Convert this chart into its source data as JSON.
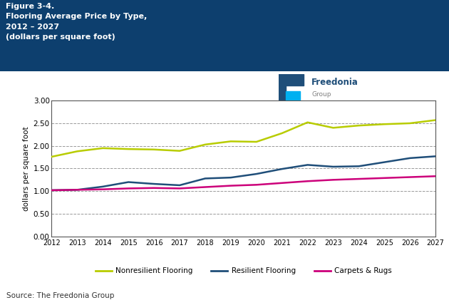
{
  "years": [
    2012,
    2013,
    2014,
    2015,
    2016,
    2017,
    2018,
    2019,
    2020,
    2021,
    2022,
    2023,
    2024,
    2025,
    2026,
    2027
  ],
  "nonresilient": [
    1.76,
    1.88,
    1.95,
    1.93,
    1.92,
    1.89,
    2.03,
    2.1,
    2.09,
    2.28,
    2.52,
    2.4,
    2.45,
    2.48,
    2.5,
    2.57
  ],
  "resilient": [
    1.02,
    1.03,
    1.1,
    1.2,
    1.16,
    1.13,
    1.28,
    1.3,
    1.38,
    1.49,
    1.58,
    1.54,
    1.55,
    1.64,
    1.73,
    1.77
  ],
  "carpets": [
    1.02,
    1.03,
    1.04,
    1.06,
    1.07,
    1.06,
    1.09,
    1.12,
    1.14,
    1.18,
    1.22,
    1.25,
    1.27,
    1.29,
    1.31,
    1.33
  ],
  "nonresilient_color": "#b8cc00",
  "resilient_color": "#1f4e79",
  "carpets_color": "#cc007a",
  "header_bg": "#0d3f6e",
  "header_text_color": "#ffffff",
  "grid_color": "#999999",
  "title_line1": "Figure 3-4.",
  "title_line2": "Flooring Average Price by Type,",
  "title_line3": "2012 – 2027",
  "title_line4": "(dollars per square foot)",
  "ylabel": "dollars per square foot",
  "source_text": "Source: The Freedonia Group",
  "legend_nonresilient": "Nonresilient Flooring",
  "legend_resilient": "Resilient Flooring",
  "legend_carpets": "Carpets & Rugs",
  "ylim": [
    0.0,
    3.0
  ],
  "yticks": [
    0.0,
    0.5,
    1.0,
    1.5,
    2.0,
    2.5,
    3.0
  ],
  "freedonia_dark": "#1f4e79",
  "freedonia_mid": "#2e75b6",
  "freedonia_light": "#00b0f0",
  "freedonia_gray": "#808080"
}
